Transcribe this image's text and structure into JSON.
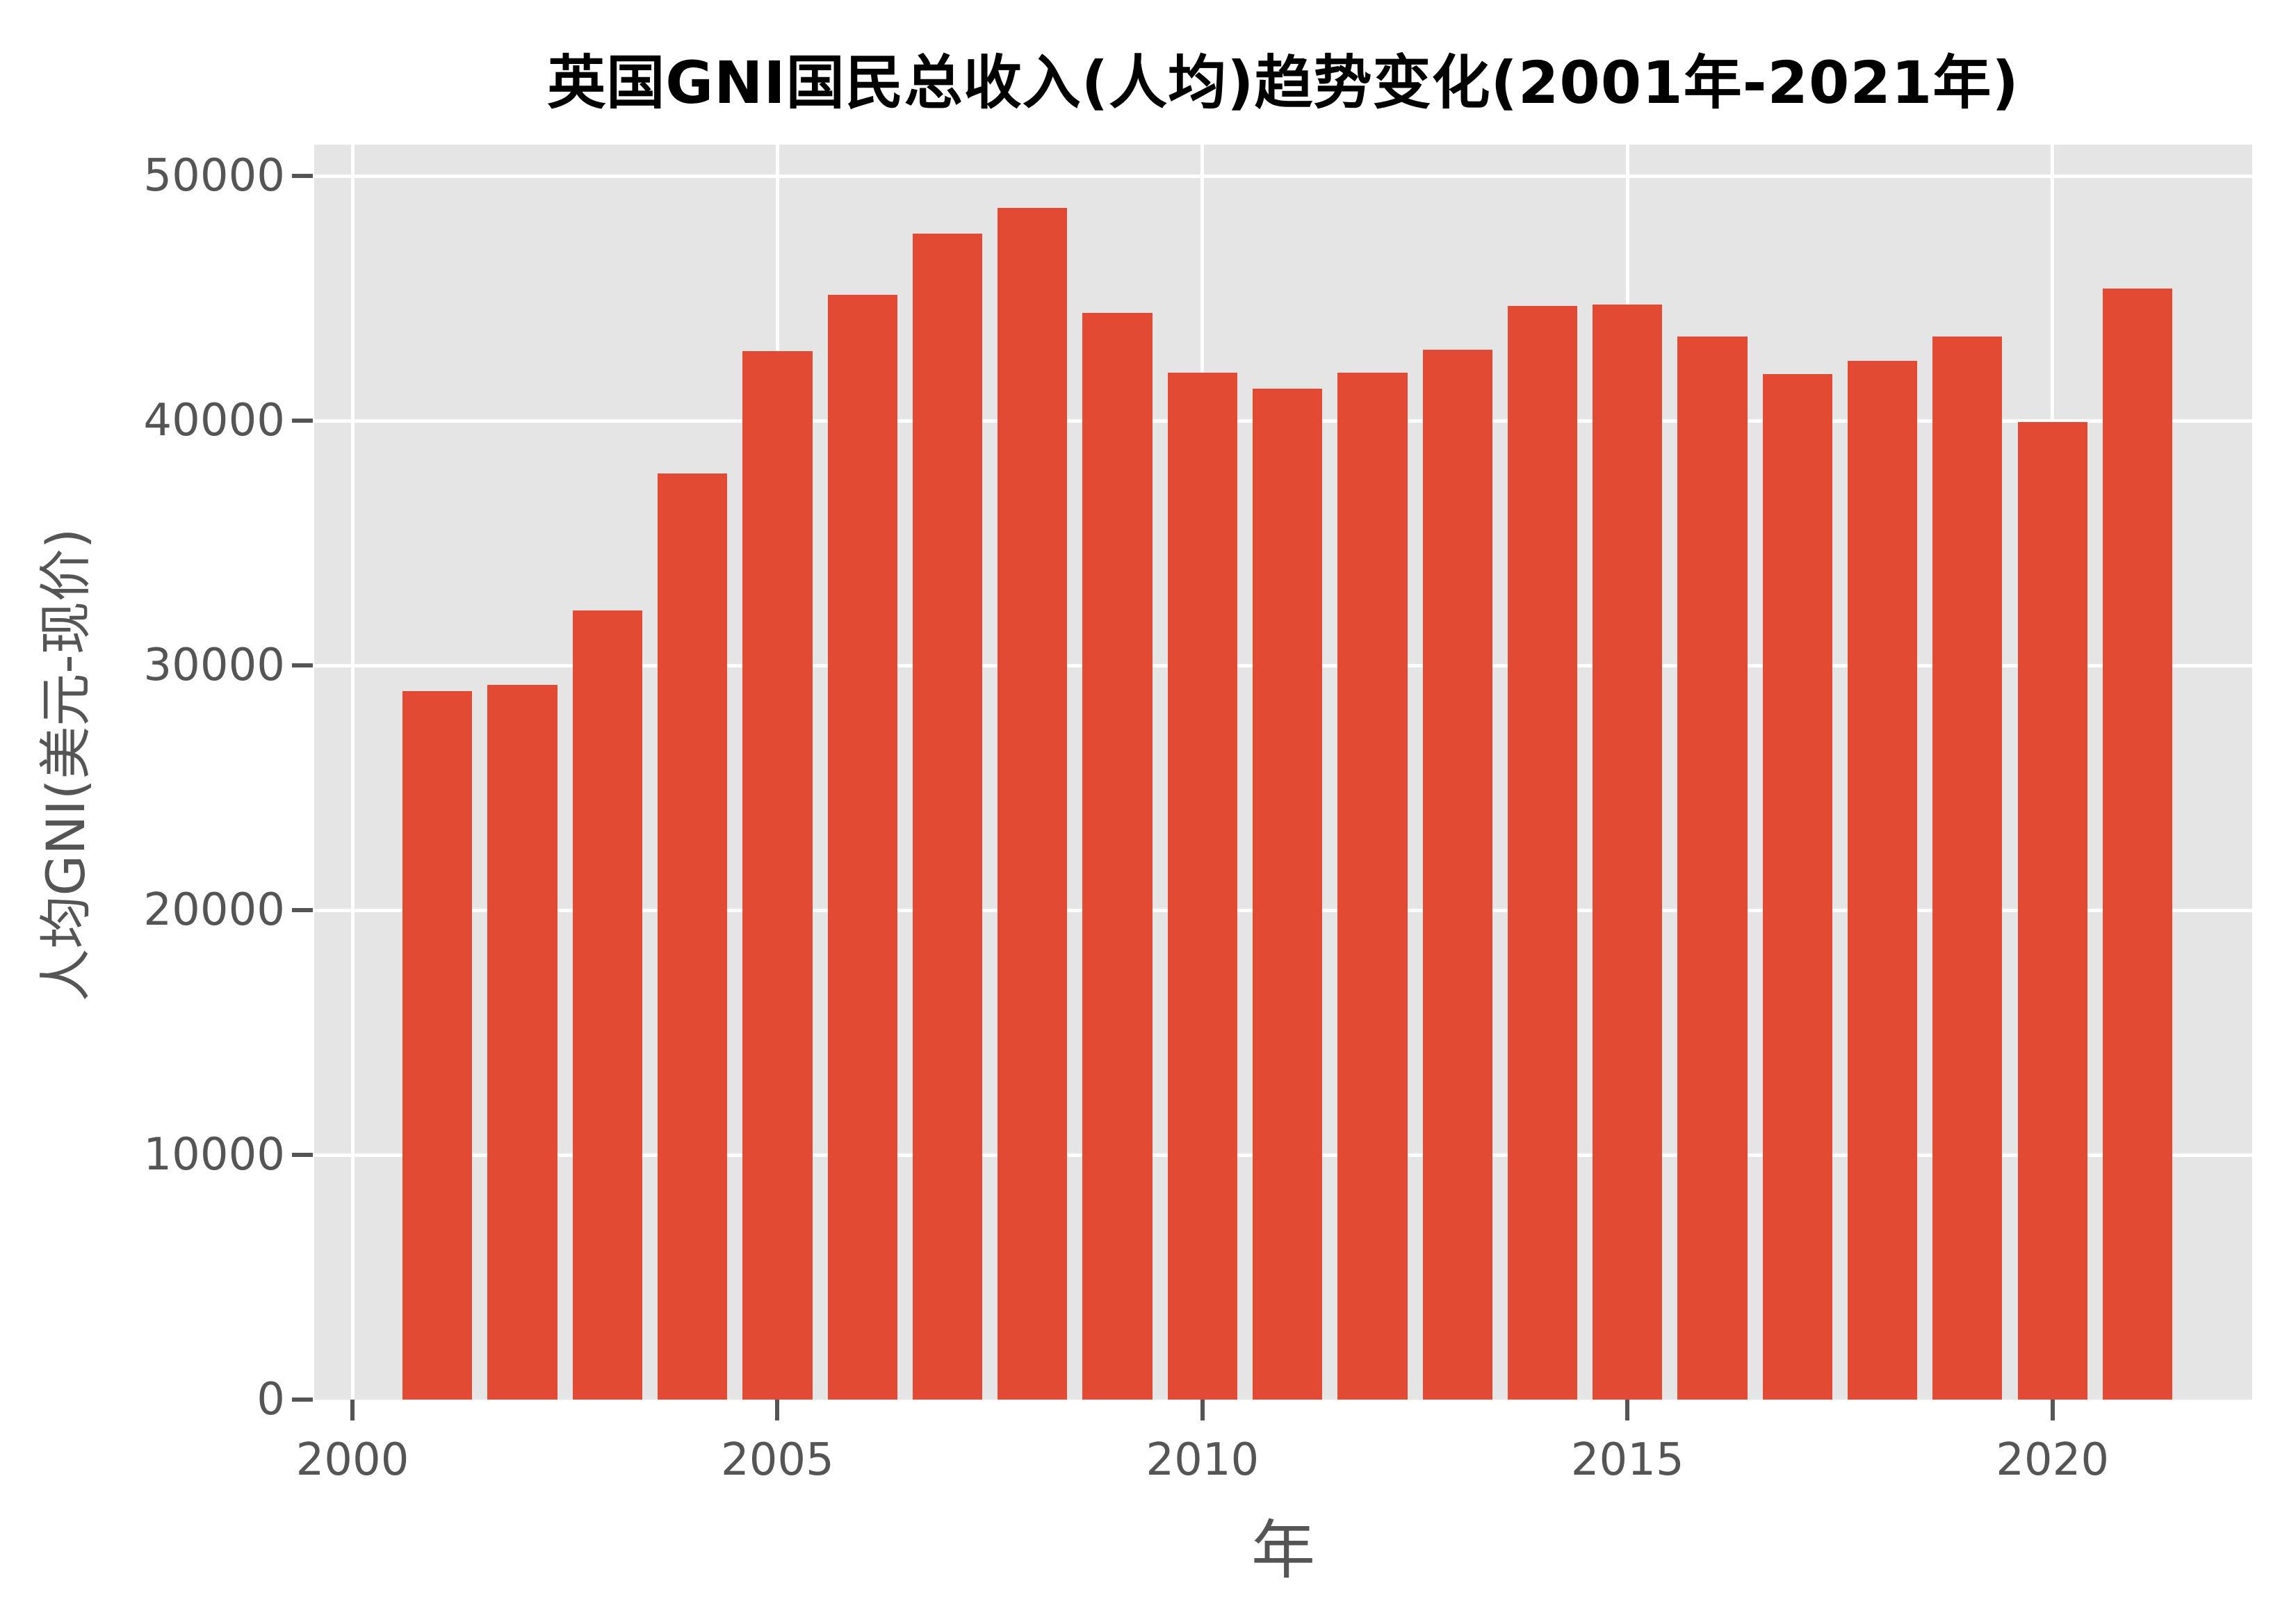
{
  "title": "英国GNI国民总收入(人均)趋势变化(2001年-2021年)",
  "axes": {
    "x_label": "年",
    "y_label": "人均GNI(美元-现价)"
  },
  "chart_data": {
    "type": "bar",
    "title": "英国GNI国民总收入(人均)趋势变化(2001年-2021年)",
    "xlabel": "年",
    "ylabel": "人均GNI(美元-现价)",
    "categories": [
      2001,
      2002,
      2003,
      2004,
      2005,
      2006,
      2007,
      2008,
      2009,
      2010,
      2011,
      2012,
      2013,
      2014,
      2015,
      2016,
      2017,
      2018,
      2019,
      2020,
      2021
    ],
    "values": [
      28950,
      29200,
      32250,
      37850,
      42850,
      45150,
      47650,
      48700,
      44400,
      41950,
      41300,
      41950,
      42900,
      44700,
      44750,
      43450,
      41900,
      42450,
      43450,
      39950,
      45400
    ],
    "x_ticks": [
      2000,
      2005,
      2010,
      2015,
      2020
    ],
    "y_ticks": [
      0,
      10000,
      20000,
      30000,
      40000,
      50000
    ],
    "xlim": [
      1999.55,
      2022.35
    ],
    "ylim": [
      0,
      51280
    ],
    "grid": "white major gridlines on gray panel, drawn under bars",
    "legend_position": "none",
    "colors": {
      "bar": "#E24A33",
      "panel_background": "#E5E5E5",
      "gridline": "#FFFFFF",
      "tick": "#555555",
      "tick_label": "#555555",
      "axis_title": "#555555",
      "title": "#000000",
      "figure_background": "#FFFFFF"
    }
  }
}
